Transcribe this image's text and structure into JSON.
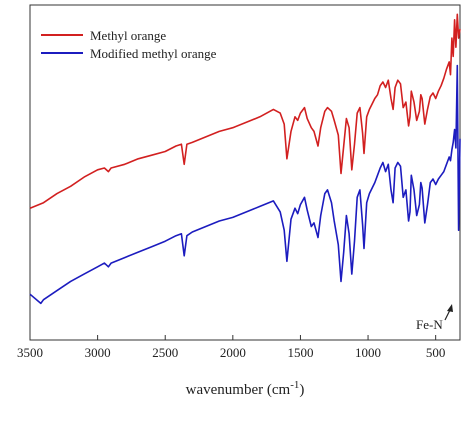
{
  "chart_data": {
    "type": "line",
    "title": "",
    "xlabel": "wavenumber (cm⁻¹)",
    "xlabel_main": "wavenumber (cm",
    "xlabel_sup": "-1",
    "xlabel_end": ")",
    "ylabel": "",
    "xlim": [
      3500,
      320
    ],
    "x_reversed": true,
    "y_ticks_shown": false,
    "grid": false,
    "legend_position": "top-left",
    "x_ticks": [
      {
        "value": 3500,
        "label": "3500"
      },
      {
        "value": 3000,
        "label": "3000"
      },
      {
        "value": 2500,
        "label": "2500"
      },
      {
        "value": 2000,
        "label": "2000"
      },
      {
        "value": 1500,
        "label": "1500"
      },
      {
        "value": 1000,
        "label": "1000"
      },
      {
        "value": 500,
        "label": "500"
      }
    ],
    "annotations": [
      {
        "text": "Fe-N",
        "x": 360,
        "arrow_to_y": 0.95
      }
    ],
    "series": [
      {
        "name": "Methyl orange",
        "color": "#d22020",
        "x": [
          3500,
          3400,
          3300,
          3200,
          3100,
          3000,
          2950,
          2920,
          2900,
          2800,
          2700,
          2600,
          2500,
          2420,
          2380,
          2360,
          2340,
          2300,
          2200,
          2100,
          2000,
          1900,
          1800,
          1700,
          1650,
          1620,
          1600,
          1570,
          1540,
          1520,
          1500,
          1470,
          1450,
          1420,
          1400,
          1370,
          1350,
          1320,
          1300,
          1270,
          1250,
          1220,
          1200,
          1180,
          1160,
          1140,
          1120,
          1100,
          1080,
          1060,
          1040,
          1030,
          1010,
          990,
          970,
          950,
          930,
          910,
          890,
          870,
          850,
          830,
          815,
          800,
          780,
          760,
          740,
          720,
          700,
          690,
          680,
          660,
          640,
          620,
          610,
          600,
          580,
          560,
          540,
          520,
          500,
          480,
          460,
          440,
          420,
          400,
          390,
          380,
          370,
          360,
          350,
          340,
          330,
          320
        ],
        "y": [
          0.52,
          0.55,
          0.6,
          0.64,
          0.69,
          0.73,
          0.74,
          0.72,
          0.74,
          0.76,
          0.79,
          0.81,
          0.83,
          0.86,
          0.87,
          0.76,
          0.87,
          0.88,
          0.91,
          0.94,
          0.96,
          0.99,
          1.02,
          1.06,
          1.04,
          0.98,
          0.79,
          0.94,
          1.02,
          1.0,
          1.04,
          1.07,
          1.01,
          0.96,
          0.94,
          0.86,
          0.96,
          1.05,
          1.07,
          1.05,
          1.0,
          0.92,
          0.71,
          0.86,
          1.01,
          0.96,
          0.73,
          0.87,
          1.04,
          1.07,
          0.93,
          0.82,
          1.02,
          1.06,
          1.09,
          1.12,
          1.14,
          1.19,
          1.21,
          1.18,
          1.22,
          1.12,
          1.06,
          1.18,
          1.22,
          1.2,
          1.07,
          1.1,
          0.97,
          1.02,
          1.16,
          1.1,
          1.0,
          1.05,
          1.14,
          1.12,
          0.98,
          1.06,
          1.13,
          1.15,
          1.12,
          1.16,
          1.19,
          1.23,
          1.28,
          1.32,
          1.25,
          1.45,
          1.35,
          1.55,
          1.4,
          1.58,
          1.45,
          1.5
        ]
      },
      {
        "name": "Modified methyl orange",
        "color": "#1c1cbf",
        "x": [
          3500,
          3420,
          3400,
          3300,
          3200,
          3100,
          3000,
          2950,
          2920,
          2900,
          2800,
          2700,
          2600,
          2500,
          2420,
          2380,
          2360,
          2340,
          2300,
          2200,
          2100,
          2000,
          1900,
          1800,
          1700,
          1650,
          1620,
          1600,
          1570,
          1540,
          1520,
          1500,
          1470,
          1450,
          1420,
          1400,
          1370,
          1350,
          1320,
          1300,
          1270,
          1250,
          1220,
          1200,
          1180,
          1160,
          1140,
          1120,
          1100,
          1080,
          1060,
          1040,
          1030,
          1010,
          990,
          970,
          950,
          930,
          910,
          890,
          870,
          850,
          830,
          815,
          800,
          780,
          760,
          740,
          720,
          700,
          690,
          680,
          660,
          640,
          620,
          610,
          600,
          580,
          560,
          540,
          520,
          500,
          480,
          460,
          440,
          420,
          400,
          390,
          380,
          370,
          360,
          350,
          340,
          330,
          320
        ],
        "y": [
          0.05,
          0.0,
          0.02,
          0.07,
          0.12,
          0.16,
          0.2,
          0.22,
          0.2,
          0.22,
          0.25,
          0.28,
          0.31,
          0.34,
          0.37,
          0.38,
          0.26,
          0.37,
          0.39,
          0.42,
          0.45,
          0.47,
          0.5,
          0.53,
          0.56,
          0.5,
          0.4,
          0.23,
          0.46,
          0.52,
          0.49,
          0.54,
          0.58,
          0.51,
          0.42,
          0.44,
          0.36,
          0.48,
          0.6,
          0.62,
          0.55,
          0.45,
          0.32,
          0.12,
          0.28,
          0.48,
          0.38,
          0.16,
          0.34,
          0.58,
          0.62,
          0.43,
          0.3,
          0.55,
          0.6,
          0.63,
          0.66,
          0.7,
          0.74,
          0.77,
          0.72,
          0.76,
          0.62,
          0.55,
          0.74,
          0.77,
          0.75,
          0.58,
          0.62,
          0.45,
          0.5,
          0.7,
          0.62,
          0.48,
          0.54,
          0.66,
          0.63,
          0.44,
          0.54,
          0.66,
          0.68,
          0.65,
          0.68,
          0.7,
          0.72,
          0.76,
          0.8,
          0.78,
          0.84,
          0.88,
          0.95,
          0.85,
          1.3,
          0.4,
          0.9
        ]
      }
    ]
  }
}
